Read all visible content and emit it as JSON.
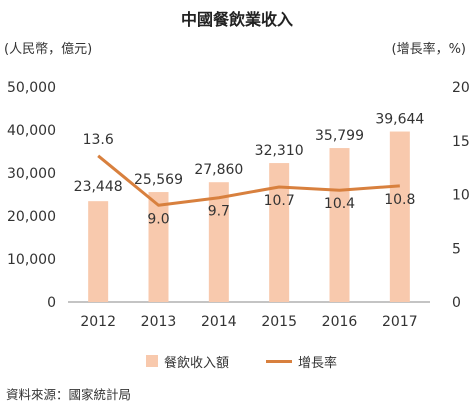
{
  "chart_data": {
    "type": "bar+line",
    "title": "中國餐飲業收入",
    "categories": [
      "2012",
      "2013",
      "2014",
      "2015",
      "2016",
      "2017"
    ],
    "series": [
      {
        "name": "餐飲收入額",
        "type": "bar",
        "axis": "left",
        "values": [
          23448,
          25569,
          27860,
          32310,
          35799,
          39644
        ],
        "labels": [
          "23,448",
          "25,569",
          "27,860",
          "32,310",
          "35,799",
          "39,644"
        ]
      },
      {
        "name": "增長率",
        "type": "line",
        "axis": "right",
        "values": [
          13.6,
          9.0,
          9.7,
          10.7,
          10.4,
          10.8
        ],
        "labels": [
          "13.6",
          "9.0",
          "9.7",
          "10.7",
          "10.4",
          "10.8"
        ]
      }
    ],
    "left_axis": {
      "label": "(人民幣，億元)",
      "range": [
        0,
        50000
      ],
      "ticks": [
        0,
        10000,
        20000,
        30000,
        40000,
        50000
      ],
      "tick_labels": [
        "0",
        "10,000",
        "20,000",
        "30,000",
        "40,000",
        "50,000"
      ]
    },
    "right_axis": {
      "label": "(增長率，%)",
      "range": [
        0,
        20
      ],
      "ticks": [
        0,
        5,
        10,
        15,
        20
      ],
      "tick_labels": [
        "0",
        "5",
        "10",
        "15",
        "20"
      ]
    },
    "grid": false,
    "legend_position": "bottom",
    "colors": {
      "bar": "#f8c9ad",
      "line": "#d8803e",
      "axis": "#888888",
      "text": "#333333"
    },
    "source": "資料來源：國家統計局"
  }
}
